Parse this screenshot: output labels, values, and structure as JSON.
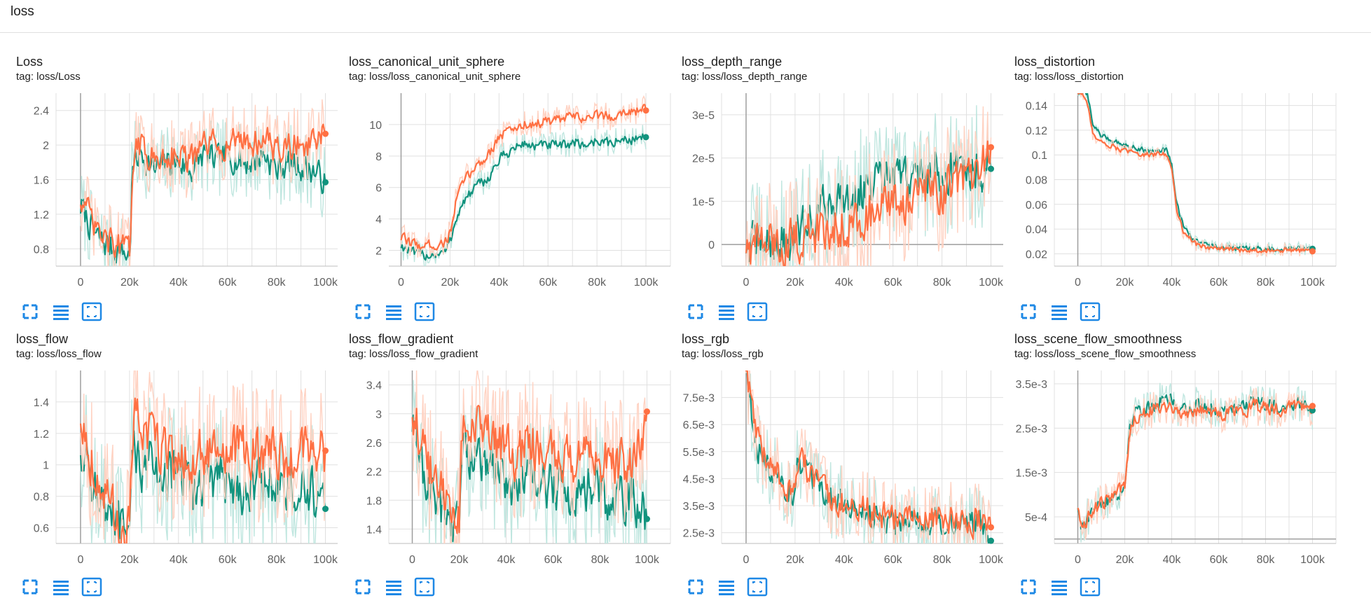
{
  "section": {
    "title": "loss"
  },
  "colors": {
    "teal": "#12937e",
    "orange": "#ff7043",
    "teal_light": "#bfe6df",
    "orange_light": "#ffd2c2",
    "grid": "#e0e0e0",
    "axis": "#9e9e9e"
  },
  "toolbar": {
    "icons": [
      "fit-screen-icon",
      "lines-icon",
      "fit-domain-icon"
    ]
  },
  "chart_data": [
    {
      "type": "line",
      "title": "Loss",
      "tag": "tag: loss/Loss",
      "xlim": [
        -10000,
        105000
      ],
      "ylim": [
        0.6,
        2.6
      ],
      "xticks": [
        0,
        20000,
        40000,
        60000,
        80000,
        100000
      ],
      "xtick_labels": [
        "0",
        "20k",
        "40k",
        "60k",
        "80k",
        "100k"
      ],
      "yticks": [
        0.8,
        1.2,
        1.6,
        2.0,
        2.4
      ],
      "ytick_labels": [
        "0.8",
        "1.2",
        "1.6",
        "2",
        "2.4"
      ],
      "x": [
        0,
        3000,
        6000,
        10000,
        14000,
        18000,
        20000,
        21000,
        25000,
        30000,
        35000,
        40000,
        45000,
        50000,
        55000,
        60000,
        65000,
        70000,
        75000,
        80000,
        85000,
        90000,
        95000,
        100000
      ],
      "series": [
        {
          "name": "teal",
          "values": [
            1.3,
            1.1,
            0.95,
            0.85,
            0.8,
            0.75,
            0.7,
            1.8,
            1.9,
            1.7,
            1.8,
            1.8,
            1.7,
            1.9,
            1.8,
            1.9,
            1.8,
            1.8,
            1.9,
            1.7,
            1.8,
            1.75,
            1.7,
            1.57
          ]
        },
        {
          "name": "orange",
          "values": [
            1.4,
            1.2,
            1.0,
            0.9,
            0.85,
            0.8,
            0.75,
            1.9,
            2.0,
            1.8,
            1.9,
            1.9,
            1.8,
            2.0,
            2.0,
            2.0,
            2.1,
            2.0,
            2.1,
            1.9,
            2.0,
            2.0,
            2.0,
            2.13
          ]
        }
      ],
      "noise": 0.25
    },
    {
      "type": "line",
      "title": "loss_canonical_unit_sphere",
      "tag": "tag: loss/loss_canonical_unit_sphere",
      "xlim": [
        -5000,
        110000
      ],
      "ylim": [
        1,
        12
      ],
      "xticks": [
        0,
        20000,
        40000,
        60000,
        80000,
        100000
      ],
      "xtick_labels": [
        "0",
        "20k",
        "40k",
        "60k",
        "80k",
        "100k"
      ],
      "yticks": [
        2,
        4,
        6,
        8,
        10
      ],
      "ytick_labels": [
        "2",
        "4",
        "6",
        "8",
        "10"
      ],
      "x": [
        0,
        5000,
        10000,
        15000,
        18000,
        20000,
        22000,
        25000,
        30000,
        35000,
        40000,
        45000,
        50000,
        55000,
        60000,
        65000,
        70000,
        75000,
        80000,
        85000,
        90000,
        95000,
        100000
      ],
      "series": [
        {
          "name": "teal",
          "values": [
            2.3,
            1.8,
            1.7,
            1.8,
            1.9,
            2.6,
            4.0,
            5.0,
            6.0,
            6.5,
            7.8,
            8.4,
            8.8,
            8.6,
            8.7,
            8.6,
            8.9,
            8.7,
            9.0,
            8.8,
            9.0,
            9.1,
            9.2
          ]
        },
        {
          "name": "orange",
          "values": [
            2.8,
            2.4,
            2.3,
            2.4,
            2.5,
            3.2,
            5.0,
            6.3,
            7.3,
            8.0,
            9.3,
            9.7,
            10.0,
            10.1,
            10.2,
            10.3,
            10.5,
            10.4,
            10.6,
            10.5,
            10.8,
            10.9,
            10.9
          ]
        }
      ],
      "noise": 0.5
    },
    {
      "type": "line",
      "title": "loss_depth_range",
      "tag": "tag: loss/loss_depth_range",
      "xlim": [
        -10000,
        105000
      ],
      "ylim": [
        -5e-06,
        3.5e-05
      ],
      "xticks": [
        0,
        20000,
        40000,
        60000,
        80000,
        100000
      ],
      "xtick_labels": [
        "0",
        "20k",
        "40k",
        "60k",
        "80k",
        "100k"
      ],
      "yticks": [
        0,
        1e-05,
        2e-05,
        3e-05
      ],
      "ytick_labels": [
        "0",
        "1e-5",
        "2e-5",
        "3e-5"
      ],
      "x": [
        0,
        5000,
        10000,
        15000,
        20000,
        25000,
        30000,
        35000,
        40000,
        45000,
        50000,
        55000,
        60000,
        65000,
        70000,
        75000,
        80000,
        85000,
        90000,
        95000,
        100000
      ],
      "series": [
        {
          "name": "teal",
          "values": [
            0,
            0,
            2e-07,
            5e-07,
            1e-06,
            5e-06,
            8e-06,
            1e-05,
            1.1e-05,
            1.2e-05,
            1.3e-05,
            1.4e-05,
            1.5e-05,
            1.6e-05,
            1.5e-05,
            1.7e-05,
            1.6e-05,
            1.8e-05,
            1.7e-05,
            1.8e-05,
            1.75e-05
          ]
        },
        {
          "name": "orange",
          "values": [
            0,
            0,
            2e-07,
            4e-07,
            8e-07,
            2e-06,
            3e-06,
            4e-06,
            5e-06,
            6e-06,
            7e-06,
            8e-06,
            9e-06,
            1e-05,
            1.1e-05,
            1.2e-05,
            1.3e-05,
            1.4e-05,
            1.5e-05,
            1.6e-05,
            2.25e-05
          ]
        }
      ],
      "noise": 8e-06
    },
    {
      "type": "line",
      "title": "loss_distortion",
      "tag": "tag: loss/loss_distortion",
      "xlim": [
        -10000,
        110000
      ],
      "ylim": [
        0.01,
        0.15
      ],
      "xticks": [
        0,
        20000,
        40000,
        60000,
        80000,
        100000
      ],
      "xtick_labels": [
        "0",
        "20k",
        "40k",
        "60k",
        "80k",
        "100k"
      ],
      "yticks": [
        0.02,
        0.04,
        0.06,
        0.08,
        0.1,
        0.12,
        0.14
      ],
      "ytick_labels": [
        "0.02",
        "0.04",
        "0.06",
        "0.08",
        "0.1",
        "0.12",
        "0.14"
      ],
      "x": [
        0,
        2000,
        4000,
        6000,
        10000,
        20000,
        30000,
        38000,
        40000,
        42000,
        45000,
        50000,
        55000,
        60000,
        70000,
        80000,
        90000,
        100000
      ],
      "series": [
        {
          "name": "teal",
          "values": [
            0.15,
            0.15,
            0.15,
            0.125,
            0.115,
            0.108,
            0.103,
            0.104,
            0.09,
            0.06,
            0.04,
            0.03,
            0.027,
            0.025,
            0.024,
            0.024,
            0.024,
            0.024
          ]
        },
        {
          "name": "orange",
          "values": [
            0.15,
            0.15,
            0.14,
            0.118,
            0.11,
            0.103,
            0.1,
            0.101,
            0.085,
            0.055,
            0.037,
            0.028,
            0.025,
            0.024,
            0.023,
            0.023,
            0.023,
            0.022
          ]
        }
      ],
      "noise": 0.003
    },
    {
      "type": "line",
      "title": "loss_flow",
      "tag": "tag: loss/loss_flow",
      "xlim": [
        -10000,
        105000
      ],
      "ylim": [
        0.5,
        1.6
      ],
      "xticks": [
        0,
        20000,
        40000,
        60000,
        80000,
        100000
      ],
      "xtick_labels": [
        "0",
        "20k",
        "40k",
        "60k",
        "80k",
        "100k"
      ],
      "yticks": [
        0.6,
        0.8,
        1.0,
        1.2,
        1.4
      ],
      "ytick_labels": [
        "0.6",
        "0.8",
        "1",
        "1.2",
        "1.4"
      ],
      "x": [
        0,
        3000,
        6000,
        10000,
        14000,
        18000,
        20000,
        21000,
        25000,
        30000,
        35000,
        40000,
        45000,
        50000,
        55000,
        60000,
        65000,
        70000,
        75000,
        80000,
        85000,
        90000,
        95000,
        100000
      ],
      "series": [
        {
          "name": "teal",
          "values": [
            1.1,
            1.0,
            0.85,
            0.7,
            0.6,
            0.55,
            0.55,
            1.1,
            1.0,
            1.0,
            0.95,
            0.9,
            0.85,
            0.9,
            0.9,
            0.9,
            0.85,
            0.85,
            0.9,
            0.85,
            0.85,
            0.8,
            0.8,
            0.72
          ]
        },
        {
          "name": "orange",
          "values": [
            1.3,
            1.1,
            0.95,
            0.8,
            0.65,
            0.6,
            0.6,
            1.3,
            1.2,
            1.15,
            1.1,
            1.05,
            1.0,
            1.1,
            1.05,
            1.05,
            1.1,
            1.05,
            1.1,
            1.05,
            1.05,
            1.05,
            1.1,
            1.09
          ]
        }
      ],
      "noise": 0.25
    },
    {
      "type": "line",
      "title": "loss_flow_gradient",
      "tag": "tag: loss/loss_flow_gradient",
      "xlim": [
        -10000,
        110000
      ],
      "ylim": [
        1.2,
        3.6
      ],
      "xticks": [
        0,
        20000,
        40000,
        60000,
        80000,
        100000
      ],
      "xtick_labels": [
        "0",
        "20k",
        "40k",
        "60k",
        "80k",
        "100k"
      ],
      "yticks": [
        1.4,
        1.8,
        2.2,
        2.6,
        3.0,
        3.4
      ],
      "ytick_labels": [
        "1.4",
        "1.8",
        "2.2",
        "2.6",
        "3",
        "3.4"
      ],
      "x": [
        0,
        3000,
        6000,
        10000,
        14000,
        18000,
        20000,
        21000,
        25000,
        30000,
        35000,
        40000,
        45000,
        50000,
        55000,
        60000,
        65000,
        70000,
        75000,
        80000,
        85000,
        90000,
        95000,
        100000
      ],
      "series": [
        {
          "name": "teal",
          "values": [
            2.8,
            2.4,
            2.0,
            1.8,
            1.6,
            1.5,
            1.45,
            2.6,
            2.4,
            2.3,
            2.2,
            2.1,
            2.0,
            2.1,
            2.0,
            2.0,
            1.9,
            1.9,
            2.0,
            1.9,
            1.8,
            1.8,
            1.8,
            1.54
          ]
        },
        {
          "name": "orange",
          "values": [
            3.0,
            2.7,
            2.3,
            2.0,
            1.8,
            1.6,
            1.55,
            3.0,
            2.8,
            2.7,
            2.6,
            2.5,
            2.4,
            2.6,
            2.5,
            2.4,
            2.4,
            2.3,
            2.4,
            2.3,
            2.3,
            2.3,
            2.4,
            3.03
          ]
        }
      ],
      "noise": 0.5
    },
    {
      "type": "line",
      "title": "loss_rgb",
      "tag": "tag: loss/loss_rgb",
      "xlim": [
        -10000,
        105000
      ],
      "ylim": [
        0.0021,
        0.0085
      ],
      "xticks": [
        0,
        20000,
        40000,
        60000,
        80000,
        100000
      ],
      "xtick_labels": [
        "0",
        "20k",
        "40k",
        "60k",
        "80k",
        "100k"
      ],
      "yticks": [
        0.0025,
        0.0035,
        0.0045,
        0.0055,
        0.0065,
        0.0075
      ],
      "ytick_labels": [
        "2.5e-3",
        "3.5e-3",
        "4.5e-3",
        "5.5e-3",
        "6.5e-3",
        "7.5e-3"
      ],
      "x": [
        0,
        2000,
        5000,
        10000,
        15000,
        18000,
        20000,
        21000,
        25000,
        30000,
        35000,
        40000,
        45000,
        50000,
        55000,
        60000,
        65000,
        70000,
        75000,
        80000,
        85000,
        90000,
        95000,
        100000
      ],
      "series": [
        {
          "name": "teal",
          "values": [
            0.0085,
            0.007,
            0.0055,
            0.0048,
            0.0043,
            0.004,
            0.0038,
            0.0052,
            0.0045,
            0.004,
            0.0037,
            0.0035,
            0.0033,
            0.0032,
            0.0031,
            0.003,
            0.003,
            0.003,
            0.003,
            0.0029,
            0.0029,
            0.0029,
            0.0028,
            0.0022
          ]
        },
        {
          "name": "orange",
          "values": [
            0.0085,
            0.0072,
            0.0057,
            0.0049,
            0.0044,
            0.0041,
            0.0039,
            0.0055,
            0.0047,
            0.0041,
            0.0038,
            0.0035,
            0.0034,
            0.0033,
            0.0032,
            0.0031,
            0.0031,
            0.003,
            0.003,
            0.003,
            0.003,
            0.0029,
            0.0029,
            0.0027
          ]
        }
      ],
      "noise": 0.0008
    },
    {
      "type": "line",
      "title": "loss_scene_flow_smoothness",
      "tag": "tag: loss/loss_scene_flow_smoothness",
      "xlim": [
        -10000,
        110000
      ],
      "ylim": [
        -0.0001,
        0.0038
      ],
      "xticks": [
        0,
        20000,
        40000,
        60000,
        80000,
        100000
      ],
      "xtick_labels": [
        "0",
        "20k",
        "40k",
        "60k",
        "80k",
        "100k"
      ],
      "yticks": [
        0.0005,
        0.0015,
        0.0025,
        0.0035
      ],
      "ytick_labels": [
        "5e-4",
        "1.5e-3",
        "2.5e-3",
        "3.5e-3"
      ],
      "x": [
        0,
        1000,
        3000,
        6000,
        10000,
        15000,
        19000,
        20000,
        22000,
        25000,
        30000,
        35000,
        40000,
        45000,
        50000,
        55000,
        60000,
        65000,
        70000,
        75000,
        80000,
        85000,
        90000,
        95000,
        100000
      ],
      "series": [
        {
          "name": "teal",
          "values": [
            0.0007,
            0.0003,
            0.0004,
            0.0006,
            0.0008,
            0.001,
            0.0011,
            0.0012,
            0.0027,
            0.0029,
            0.003,
            0.0031,
            0.0031,
            0.0029,
            0.003,
            0.003,
            0.0029,
            0.003,
            0.003,
            0.0031,
            0.003,
            0.003,
            0.0031,
            0.003,
            0.0029
          ]
        },
        {
          "name": "orange",
          "values": [
            0.0007,
            0.0003,
            0.0004,
            0.0006,
            0.0008,
            0.001,
            0.0011,
            0.0012,
            0.0026,
            0.0028,
            0.0029,
            0.003,
            0.003,
            0.0028,
            0.0029,
            0.0029,
            0.0028,
            0.0029,
            0.0029,
            0.003,
            0.003,
            0.0029,
            0.003,
            0.003,
            0.003
          ]
        }
      ],
      "noise": 0.00025
    }
  ]
}
